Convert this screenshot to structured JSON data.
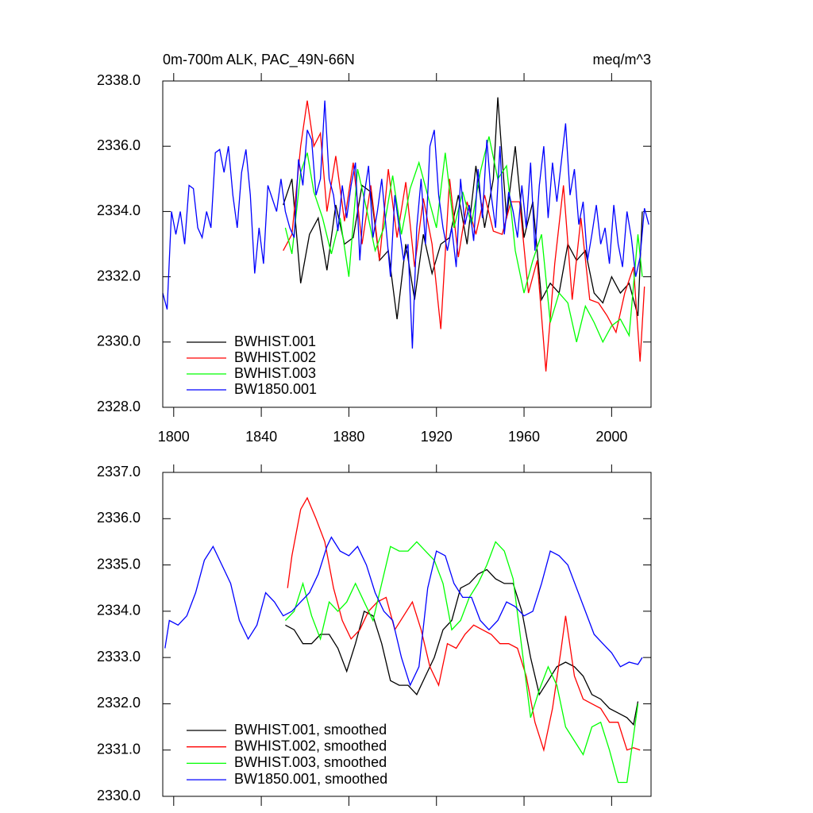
{
  "chart_data": [
    {
      "type": "line",
      "title": "0m-700m ALK, PAC_49N-66N",
      "subtitle": "meq/m^3",
      "xlim": [
        1795,
        2018
      ],
      "xticks": [
        1800,
        1840,
        1880,
        1920,
        1960,
        2000
      ],
      "ylim": [
        2328,
        2338
      ],
      "yticks": [
        {
          "value": 2328,
          "label": "2328.0"
        },
        {
          "value": 2330,
          "label": "2330.0"
        },
        {
          "value": 2332,
          "label": "2332.0"
        },
        {
          "value": 2334,
          "label": "2334.0"
        },
        {
          "value": 2336,
          "label": "2336.0"
        },
        {
          "value": 2338,
          "label": "2338.0"
        }
      ],
      "legend": "lower left",
      "series": [
        {
          "name": "BWHIST.001",
          "color": "#000000",
          "x": [
            1850,
            1854,
            1858,
            1862,
            1866,
            1870,
            1874,
            1878,
            1882,
            1886,
            1890,
            1894,
            1898,
            1902,
            1906,
            1910,
            1914,
            1918,
            1922,
            1926,
            1930,
            1934,
            1938,
            1942,
            1946,
            1948,
            1952,
            1956,
            1960,
            1964,
            1968,
            1972,
            1976,
            1980,
            1984,
            1988,
            1992,
            1996,
            2000,
            2004,
            2008,
            2012,
            2014
          ],
          "values": [
            2334.2,
            2335,
            2331.8,
            2333.3,
            2333.8,
            2332.2,
            2334.2,
            2333,
            2333.2,
            2334.8,
            2334.6,
            2332.5,
            2332.8,
            2330.7,
            2333,
            2331.3,
            2333.3,
            2332.1,
            2333,
            2333.2,
            2334.5,
            2333,
            2335.4,
            2333.5,
            2335,
            2337.5,
            2333.8,
            2336,
            2333.2,
            2334.3,
            2331.3,
            2331.8,
            2331.5,
            2333,
            2332.5,
            2332.8,
            2331.5,
            2331.2,
            2332,
            2331.5,
            2331.8,
            2330.8,
            2334
          ]
        },
        {
          "name": "BWHIST.002",
          "color": "#ff0000",
          "x": [
            1850,
            1854,
            1858,
            1861,
            1864,
            1867,
            1870,
            1874,
            1878,
            1882,
            1886,
            1890,
            1894,
            1898,
            1902,
            1906,
            1910,
            1914,
            1918,
            1922,
            1926,
            1930,
            1934,
            1938,
            1942,
            1946,
            1950,
            1954,
            1958,
            1962,
            1966,
            1970,
            1974,
            1978,
            1982,
            1986,
            1990,
            1994,
            1998,
            2002,
            2006,
            2010,
            2013,
            2015
          ],
          "values": [
            2332.8,
            2333.3,
            2336,
            2337.4,
            2336,
            2336.4,
            2334,
            2335.7,
            2333.7,
            2335.5,
            2333,
            2334.8,
            2332.5,
            2335.3,
            2333.2,
            2334.9,
            2332.3,
            2334.4,
            2333,
            2330.4,
            2335,
            2332.6,
            2334.3,
            2333.3,
            2334.5,
            2333.4,
            2333.3,
            2334.3,
            2334.3,
            2331.5,
            2332.5,
            2329.1,
            2332.4,
            2334.8,
            2331.3,
            2333.8,
            2331.3,
            2331.2,
            2330.8,
            2330.3,
            2331.5,
            2332.3,
            2329.4,
            2331.7
          ]
        },
        {
          "name": "BWHIST.003",
          "color": "#00ff00",
          "x": [
            1851,
            1854,
            1858,
            1861,
            1864,
            1868,
            1872,
            1876,
            1880,
            1884,
            1888,
            1892,
            1896,
            1900,
            1904,
            1908,
            1912,
            1916,
            1920,
            1924,
            1928,
            1932,
            1936,
            1940,
            1944,
            1948,
            1952,
            1956,
            1960,
            1964,
            1968,
            1972,
            1976,
            1980,
            1984,
            1988,
            1992,
            1996,
            2000,
            2004,
            2008,
            2012,
            2014
          ],
          "values": [
            2333.5,
            2332.7,
            2335.2,
            2335.8,
            2334.6,
            2333.8,
            2332.7,
            2333.8,
            2332,
            2335.3,
            2334.1,
            2332.8,
            2333.5,
            2335.1,
            2333.3,
            2334.7,
            2335.5,
            2334.5,
            2333.5,
            2335.8,
            2333.5,
            2334.6,
            2333.6,
            2335.2,
            2336.3,
            2335,
            2335.4,
            2332.8,
            2331.5,
            2332.5,
            2333.3,
            2330.6,
            2331.5,
            2331.2,
            2330,
            2331.1,
            2330.6,
            2330,
            2330.5,
            2330.7,
            2330.2,
            2333.3,
            2332
          ]
        },
        {
          "name": "BW1850.001",
          "color": "#0000ff",
          "x": [
            1795,
            1797,
            1799,
            1801,
            1803,
            1805,
            1807,
            1809,
            1811,
            1813,
            1815,
            1817,
            1819,
            1821,
            1823,
            1825,
            1827,
            1829,
            1831,
            1833,
            1835,
            1837,
            1839,
            1841,
            1843,
            1845,
            1847,
            1849,
            1851,
            1853,
            1855,
            1857,
            1859,
            1861,
            1863,
            1865,
            1867,
            1869,
            1871,
            1873,
            1875,
            1877,
            1879,
            1881,
            1883,
            1885,
            1887,
            1889,
            1891,
            1893,
            1895,
            1897,
            1899,
            1901,
            1903,
            1905,
            1907,
            1909,
            1911,
            1913,
            1915,
            1917,
            1919,
            1921,
            1923,
            1925,
            1927,
            1929,
            1931,
            1933,
            1935,
            1937,
            1939,
            1941,
            1943,
            1945,
            1947,
            1949,
            1951,
            1953,
            1955,
            1957,
            1959,
            1961,
            1963,
            1965,
            1967,
            1969,
            1971,
            1973,
            1975,
            1977,
            1979,
            1981,
            1983,
            1985,
            1987,
            1989,
            1991,
            1993,
            1995,
            1997,
            1999,
            2001,
            2003,
            2005,
            2007,
            2009,
            2011,
            2013,
            2015,
            2017
          ],
          "values": [
            2331.5,
            2331,
            2334,
            2333.3,
            2334,
            2333,
            2334.8,
            2334.7,
            2333.5,
            2333.2,
            2334,
            2333.5,
            2335.8,
            2335.9,
            2335.2,
            2336,
            2334.5,
            2333.5,
            2335.2,
            2335.9,
            2334.5,
            2332.1,
            2333.5,
            2332.4,
            2334.8,
            2334.4,
            2334,
            2335,
            2334,
            2333.5,
            2333.2,
            2335.6,
            2334.8,
            2336.5,
            2336.2,
            2334.5,
            2335,
            2337.4,
            2335,
            2334.5,
            2333.4,
            2334.8,
            2333.8,
            2334.8,
            2335.5,
            2332.5,
            2334.5,
            2335.4,
            2333.2,
            2334,
            2335,
            2333.5,
            2332,
            2334.5,
            2333.5,
            2332.5,
            2333,
            2329.8,
            2333.5,
            2335,
            2333,
            2336,
            2336.5,
            2334.5,
            2333.5,
            2332.8,
            2333.5,
            2332.3,
            2335,
            2333.6,
            2334.2,
            2333.1,
            2335.3,
            2333.8,
            2336.2,
            2334.5,
            2333.5,
            2336,
            2333.3,
            2334.6,
            2334,
            2333.2,
            2334.8,
            2333.5,
            2335.5,
            2332.8,
            2334.8,
            2336,
            2333.8,
            2335.5,
            2334.3,
            2335.5,
            2336.7,
            2334.5,
            2335.3,
            2333.6,
            2334.3,
            2332.5,
            2333.3,
            2334.2,
            2333,
            2333.5,
            2332.4,
            2334.2,
            2333,
            2332.3,
            2334,
            2333.2,
            2332,
            2332.6,
            2334.1,
            2333.6
          ]
        }
      ]
    },
    {
      "type": "line",
      "xlim": [
        1795,
        2018
      ],
      "xticks": [
        1800,
        1840,
        1880,
        1920,
        1960,
        2000
      ],
      "xtick_labels": false,
      "ylim": [
        2330,
        2337
      ],
      "yticks": [
        {
          "value": 2330,
          "label": "2330.0"
        },
        {
          "value": 2331,
          "label": "2331.0"
        },
        {
          "value": 2332,
          "label": "2332.0"
        },
        {
          "value": 2333,
          "label": "2333.0"
        },
        {
          "value": 2334,
          "label": "2334.0"
        },
        {
          "value": 2335,
          "label": "2335.0"
        },
        {
          "value": 2336,
          "label": "2336.0"
        },
        {
          "value": 2337,
          "label": "2337.0"
        }
      ],
      "legend": "lower left",
      "series": [
        {
          "name": "BWHIST.001, smoothed",
          "color": "#000000",
          "x": [
            1851,
            1855,
            1859,
            1863,
            1867,
            1871,
            1875,
            1879,
            1883,
            1887,
            1891,
            1895,
            1899,
            1903,
            1907,
            1911,
            1915,
            1919,
            1923,
            1927,
            1931,
            1935,
            1939,
            1943,
            1947,
            1951,
            1955,
            1959,
            1963,
            1967,
            1971,
            1975,
            1979,
            1983,
            1987,
            1991,
            1995,
            1999,
            2003,
            2007,
            2010,
            2012
          ],
          "values": [
            2333.7,
            2333.6,
            2333.3,
            2333.3,
            2333.5,
            2333.5,
            2333.2,
            2332.7,
            2333.3,
            2334,
            2333.9,
            2333.3,
            2332.5,
            2332.4,
            2332.4,
            2332.2,
            2332.6,
            2333,
            2333.6,
            2333.8,
            2334.5,
            2334.6,
            2334.8,
            2334.9,
            2334.7,
            2334.6,
            2334.6,
            2334,
            2333,
            2332.2,
            2332.5,
            2332.8,
            2332.9,
            2332.8,
            2332.6,
            2332.2,
            2332.1,
            2331.9,
            2331.8,
            2331.7,
            2331.55,
            2332.05
          ]
        },
        {
          "name": "BWHIST.002, smoothed",
          "color": "#ff0000",
          "x": [
            1852,
            1854,
            1858,
            1861,
            1865,
            1869,
            1873,
            1877,
            1881,
            1885,
            1889,
            1893,
            1897,
            1901,
            1905,
            1909,
            1913,
            1917,
            1921,
            1925,
            1929,
            1933,
            1937,
            1941,
            1945,
            1949,
            1953,
            1957,
            1961,
            1965,
            1969,
            1973,
            1977,
            1979,
            1983,
            1987,
            1991,
            1995,
            1999,
            2003,
            2007,
            2010,
            2013
          ],
          "values": [
            2334.5,
            2335.2,
            2336.2,
            2336.45,
            2336,
            2335.5,
            2334.5,
            2333.8,
            2333.4,
            2333.6,
            2334,
            2334.2,
            2334.3,
            2333.6,
            2333.9,
            2334.2,
            2333.6,
            2332.8,
            2332.4,
            2333.3,
            2333.2,
            2333.5,
            2333.7,
            2333.6,
            2333.5,
            2333.3,
            2333.3,
            2333.2,
            2332.6,
            2331.6,
            2331,
            2331.9,
            2333.2,
            2333.9,
            2332.6,
            2332.1,
            2332,
            2331.9,
            2331.6,
            2331.6,
            2331,
            2331.05,
            2331
          ]
        },
        {
          "name": "BWHIST.003, smoothed",
          "color": "#00ff00",
          "x": [
            1851,
            1855,
            1859,
            1863,
            1867,
            1871,
            1875,
            1879,
            1883,
            1887,
            1891,
            1895,
            1899,
            1903,
            1907,
            1911,
            1915,
            1919,
            1923,
            1927,
            1931,
            1935,
            1939,
            1943,
            1947,
            1951,
            1955,
            1959,
            1963,
            1967,
            1971,
            1975,
            1979,
            1983,
            1987,
            1991,
            1995,
            1999,
            2003,
            2007,
            2010,
            2012
          ],
          "values": [
            2333.8,
            2334,
            2334.6,
            2333.9,
            2333.4,
            2334.2,
            2334,
            2334.2,
            2334.6,
            2334.2,
            2333.8,
            2334.6,
            2335.4,
            2335.3,
            2335.3,
            2335.5,
            2335.3,
            2335.1,
            2334.6,
            2333.6,
            2333.8,
            2334.3,
            2334.6,
            2335,
            2335.5,
            2335.3,
            2334.7,
            2333.2,
            2331.7,
            2332.3,
            2332.8,
            2332.4,
            2331.5,
            2331.2,
            2330.9,
            2331.5,
            2331.6,
            2331,
            2330.3,
            2330.3,
            2331.3,
            2332
          ]
        },
        {
          "name": "BW1850.001, smoothed",
          "color": "#0000ff",
          "x": [
            1796,
            1798,
            1802,
            1806,
            1810,
            1814,
            1818,
            1822,
            1826,
            1830,
            1834,
            1838,
            1842,
            1846,
            1850,
            1854,
            1858,
            1862,
            1866,
            1870,
            1872,
            1876,
            1880,
            1884,
            1888,
            1892,
            1896,
            1900,
            1904,
            1908,
            1912,
            1916,
            1920,
            1924,
            1928,
            1932,
            1936,
            1940,
            1944,
            1948,
            1952,
            1956,
            1960,
            1964,
            1968,
            1972,
            1976,
            1980,
            1984,
            1988,
            1992,
            1996,
            2000,
            2004,
            2008,
            2012,
            2014
          ],
          "values": [
            2333.2,
            2333.8,
            2333.7,
            2333.9,
            2334.4,
            2335.1,
            2335.4,
            2335,
            2334.6,
            2333.8,
            2333.4,
            2333.7,
            2334.4,
            2334.2,
            2333.9,
            2334,
            2334.2,
            2334.4,
            2334.8,
            2335.4,
            2335.6,
            2335.3,
            2335.2,
            2335.4,
            2335,
            2334.4,
            2334,
            2333.8,
            2333,
            2332.4,
            2332.8,
            2334.5,
            2335.3,
            2335.2,
            2334.6,
            2334.3,
            2334.3,
            2333.8,
            2333.6,
            2333.8,
            2334.2,
            2334.1,
            2333.9,
            2334,
            2334.6,
            2335.3,
            2335.2,
            2335,
            2334.5,
            2334,
            2333.5,
            2333.3,
            2333.1,
            2332.8,
            2332.9,
            2332.85,
            2333
          ]
        }
      ]
    }
  ]
}
